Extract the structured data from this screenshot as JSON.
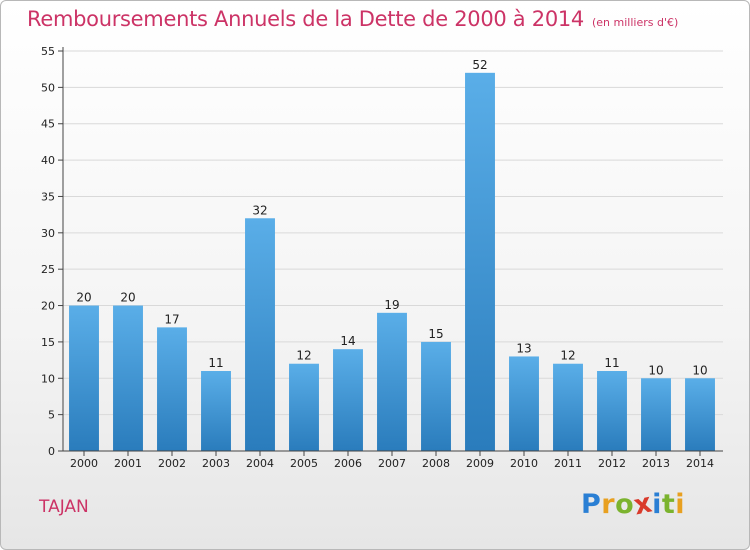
{
  "title": "Remboursements Annuels de la Dette de 2000 à 2014",
  "subtitle": "(en milliers d'€)",
  "commune": "TAJAN",
  "logo": {
    "text": "Proxiti",
    "letters": [
      {
        "ch": "P",
        "color": "#2a7fd4"
      },
      {
        "ch": "r",
        "color": "#e8a020"
      },
      {
        "ch": "o",
        "color": "#7bb32e"
      },
      {
        "ch": "x",
        "color": "#d93a2b"
      },
      {
        "ch": "i",
        "color": "#2a7fd4"
      },
      {
        "ch": "t",
        "color": "#7bb32e"
      },
      {
        "ch": "i",
        "color": "#e8a020"
      }
    ]
  },
  "colors": {
    "title": "#cc3366",
    "bar_top": "#5aaee8",
    "bar_bottom": "#2a7cbc",
    "grid": "#d9d9d9"
  },
  "chart_data": {
    "type": "bar",
    "title": "Remboursements Annuels de la Dette de 2000 à 2014",
    "subtitle": "(en milliers d'€)",
    "xlabel": "",
    "ylabel": "",
    "categories": [
      "2000",
      "2001",
      "2002",
      "2003",
      "2004",
      "2005",
      "2006",
      "2007",
      "2008",
      "2009",
      "2010",
      "2011",
      "2012",
      "2013",
      "2014"
    ],
    "values": [
      20,
      20,
      17,
      11,
      32,
      12,
      14,
      19,
      15,
      52,
      13,
      12,
      11,
      10,
      10
    ],
    "ylim": [
      0,
      55
    ],
    "yticks": [
      0,
      5,
      10,
      15,
      20,
      25,
      30,
      35,
      40,
      45,
      50,
      55
    ],
    "grid": true,
    "data_labels": true
  }
}
